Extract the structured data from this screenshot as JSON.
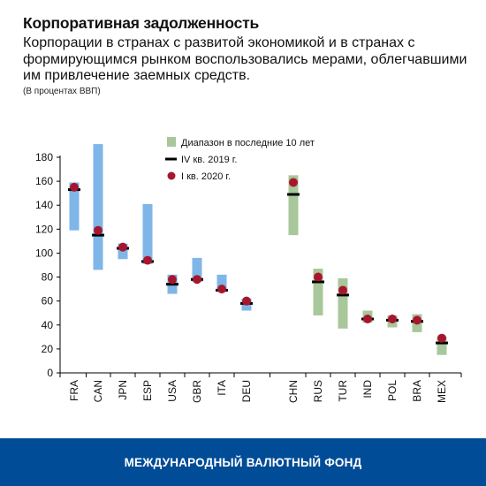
{
  "header": {
    "title": "Корпоративная задолженность",
    "subtitle": "Корпорации в странах с развитой экономикой и в странах с формирующимся рынком воспользовались мерами, облегчавшими им привлечение заемных средств.",
    "units": "(В процентах ВВП)"
  },
  "footer": {
    "org_name": "МЕЖДУНАРОДНЫЙ ВАЛЮТНЫЙ ФОНД"
  },
  "colors": {
    "advanced_range": "#7FB6E8",
    "emerging_range": "#A8C79A",
    "q4_marker": "#000000",
    "q1_marker": "#A8162E",
    "footer_bg": "#004C97"
  },
  "chart_data": {
    "type": "range",
    "title": "",
    "xlabel": "",
    "ylabel": "",
    "ylim": [
      0,
      180
    ],
    "yticks": [
      0,
      20,
      40,
      60,
      80,
      100,
      120,
      140,
      160,
      180
    ],
    "grid": false,
    "legend_position": "top-right",
    "categories": [
      "FRA",
      "CAN",
      "JPN",
      "ESP",
      "USA",
      "GBR",
      "ITA",
      "DEU",
      "CHN",
      "RUS",
      "TUR",
      "IND",
      "POL",
      "BRA",
      "MEX"
    ],
    "groups": [
      "advanced",
      "advanced",
      "advanced",
      "advanced",
      "advanced",
      "advanced",
      "advanced",
      "advanced",
      "emerging",
      "emerging",
      "emerging",
      "emerging",
      "emerging",
      "emerging",
      "emerging"
    ],
    "series": [
      {
        "name": "Диапазон в последние 10 лет",
        "marker": "bar",
        "low": [
          119,
          86,
          95,
          91,
          66,
          76,
          68,
          52,
          115,
          48,
          37,
          42,
          38,
          34,
          15
        ],
        "high": [
          159,
          191,
          108,
          141,
          82,
          96,
          82,
          62,
          165,
          87,
          79,
          52,
          48,
          49,
          30
        ]
      },
      {
        "name": "IV кв. 2019 г.",
        "marker": "dash",
        "values": [
          153,
          115,
          104,
          93,
          74,
          78,
          69,
          58,
          149,
          76,
          65,
          45,
          44,
          43,
          25
        ]
      },
      {
        "name": "I кв. 2020 г.",
        "marker": "dot",
        "values": [
          155,
          119,
          105,
          94,
          78,
          78,
          70,
          60,
          159,
          80,
          69,
          45,
          45,
          44,
          29
        ]
      }
    ]
  }
}
